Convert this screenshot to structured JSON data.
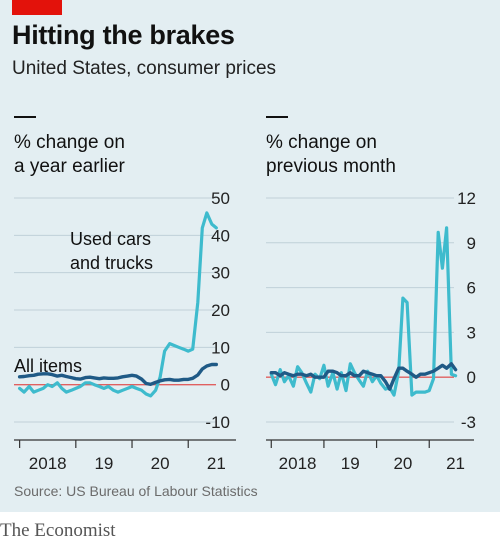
{
  "header": {
    "title": "Hitting the brakes",
    "subtitle": "United States, consumer prices"
  },
  "source": "Source: US Bureau of Labour Statistics",
  "footer": "The Economist",
  "colors": {
    "background": "#e3eef2",
    "accent_red": "#e3120b",
    "all_items": "#1f5a86",
    "used_cars": "#3ebbcd",
    "zero_line": "#e06060",
    "grid": "#c0d0d8"
  },
  "chart_data": [
    {
      "type": "line",
      "label_lines": [
        "% change on",
        "a year earlier"
      ],
      "ylim": [
        -10,
        50
      ],
      "yticks": [
        "50",
        "40",
        "30",
        "20",
        "10",
        "0",
        "-10"
      ],
      "ytick_values": [
        50,
        40,
        30,
        20,
        10,
        0,
        -10
      ],
      "xticks": [
        "2018",
        "19",
        "20",
        "21"
      ],
      "xtick_values": [
        2018,
        2019,
        2020,
        2021
      ],
      "xlim": [
        2017.9,
        2021.85
      ],
      "annotations": [
        {
          "lines": [
            "Used cars",
            "and trucks"
          ],
          "series": "used_cars"
        },
        {
          "lines": [
            "All items"
          ],
          "series": "all_items"
        }
      ],
      "series": [
        {
          "key": "used_cars",
          "color": "#3ebbcd",
          "x": [
            2018.0,
            2018.08,
            2018.17,
            2018.25,
            2018.33,
            2018.42,
            2018.5,
            2018.58,
            2018.67,
            2018.75,
            2018.83,
            2018.92,
            2019.0,
            2019.08,
            2019.17,
            2019.25,
            2019.33,
            2019.42,
            2019.5,
            2019.58,
            2019.67,
            2019.75,
            2019.83,
            2019.92,
            2020.0,
            2020.08,
            2020.17,
            2020.25,
            2020.33,
            2020.42,
            2020.5,
            2020.58,
            2020.67,
            2020.75,
            2020.83,
            2020.92,
            2021.0,
            2021.08,
            2021.17,
            2021.25,
            2021.33,
            2021.42,
            2021.5
          ],
          "values": [
            -1,
            -2,
            -0.5,
            -2,
            -1.5,
            -1,
            0,
            -0.5,
            0.5,
            -1,
            -2,
            -1.5,
            -1,
            -0.5,
            0.5,
            0.5,
            0,
            -0.5,
            -1,
            -0.5,
            -1.5,
            -2,
            -1.5,
            -1,
            -0.5,
            -1,
            -1.5,
            -2.5,
            -3,
            -1.5,
            2,
            9,
            11,
            10.5,
            10,
            9.5,
            9,
            9.5,
            22,
            42,
            46,
            43,
            42
          ]
        },
        {
          "key": "all_items",
          "color": "#1f5a86",
          "x": [
            2018.0,
            2018.08,
            2018.17,
            2018.25,
            2018.33,
            2018.42,
            2018.5,
            2018.58,
            2018.67,
            2018.75,
            2018.83,
            2018.92,
            2019.0,
            2019.08,
            2019.17,
            2019.25,
            2019.33,
            2019.42,
            2019.5,
            2019.58,
            2019.67,
            2019.75,
            2019.83,
            2019.92,
            2020.0,
            2020.08,
            2020.17,
            2020.25,
            2020.33,
            2020.42,
            2020.5,
            2020.58,
            2020.67,
            2020.75,
            2020.83,
            2020.92,
            2021.0,
            2021.08,
            2021.17,
            2021.25,
            2021.33,
            2021.42,
            2021.5
          ],
          "values": [
            2.1,
            2.2,
            2.4,
            2.5,
            2.8,
            2.9,
            2.9,
            2.7,
            2.3,
            2.5,
            2.2,
            1.9,
            1.6,
            1.5,
            1.9,
            2.0,
            1.8,
            1.6,
            1.8,
            1.7,
            1.7,
            1.8,
            2.1,
            2.3,
            2.5,
            2.3,
            1.5,
            0.3,
            0.1,
            0.6,
            1.0,
            1.3,
            1.4,
            1.2,
            1.2,
            1.4,
            1.4,
            1.7,
            2.6,
            4.2,
            5.0,
            5.4,
            5.4
          ]
        }
      ]
    },
    {
      "type": "line",
      "label_lines": [
        "% change on",
        "previous month"
      ],
      "ylim": [
        -3,
        12
      ],
      "yticks": [
        "12",
        "9",
        "6",
        "3",
        "0",
        "-3"
      ],
      "ytick_values": [
        12,
        9,
        6,
        3,
        0,
        -3
      ],
      "xticks": [
        "2018",
        "19",
        "20",
        "21"
      ],
      "xtick_values": [
        2018,
        2019,
        2020,
        2021
      ],
      "xlim": [
        2017.9,
        2021.85
      ],
      "annotations": [],
      "series": [
        {
          "key": "used_cars",
          "color": "#3ebbcd",
          "x": [
            2018.0,
            2018.08,
            2018.17,
            2018.25,
            2018.33,
            2018.42,
            2018.5,
            2018.58,
            2018.67,
            2018.75,
            2018.83,
            2018.92,
            2019.0,
            2019.08,
            2019.17,
            2019.25,
            2019.33,
            2019.42,
            2019.5,
            2019.58,
            2019.67,
            2019.75,
            2019.83,
            2019.92,
            2020.0,
            2020.08,
            2020.17,
            2020.25,
            2020.33,
            2020.42,
            2020.5,
            2020.58,
            2020.67,
            2020.75,
            2020.83,
            2020.92,
            2021.0,
            2021.08,
            2021.17,
            2021.25,
            2021.33,
            2021.42,
            2021.5
          ],
          "values": [
            0.2,
            -0.5,
            0.5,
            -0.3,
            0.1,
            -0.6,
            0.7,
            0.3,
            -0.4,
            -1.0,
            0.2,
            -0.1,
            0.8,
            -0.6,
            0.3,
            -0.8,
            0.3,
            -0.9,
            0.9,
            0.3,
            -0.2,
            -0.6,
            0.4,
            -0.3,
            0.1,
            -0.4,
            -0.8,
            -0.7,
            -1.2,
            0.4,
            5.3,
            5.0,
            -1.2,
            -1.0,
            -1.0,
            -1.0,
            -0.9,
            -0.1,
            9.7,
            7.3,
            10.0,
            0.2,
            0.1
          ]
        },
        {
          "key": "all_items",
          "color": "#1f5a86",
          "x": [
            2018.0,
            2018.08,
            2018.17,
            2018.25,
            2018.33,
            2018.42,
            2018.5,
            2018.58,
            2018.67,
            2018.75,
            2018.83,
            2018.92,
            2019.0,
            2019.08,
            2019.17,
            2019.25,
            2019.33,
            2019.42,
            2019.5,
            2019.58,
            2019.67,
            2019.75,
            2019.83,
            2019.92,
            2020.0,
            2020.08,
            2020.17,
            2020.25,
            2020.33,
            2020.42,
            2020.5,
            2020.58,
            2020.67,
            2020.75,
            2020.83,
            2020.92,
            2021.0,
            2021.08,
            2021.17,
            2021.25,
            2021.33,
            2021.42,
            2021.5
          ],
          "values": [
            0.3,
            0.3,
            0.1,
            0.3,
            0.2,
            0.1,
            0.2,
            0.2,
            0.1,
            0.2,
            0.0,
            0.0,
            0.0,
            0.4,
            0.4,
            0.3,
            0.1,
            0.1,
            0.3,
            0.1,
            0.1,
            0.4,
            0.3,
            0.2,
            0.1,
            0.1,
            -0.3,
            -0.8,
            -0.1,
            0.6,
            0.6,
            0.4,
            0.2,
            0.0,
            0.2,
            0.2,
            0.3,
            0.4,
            0.6,
            0.8,
            0.6,
            0.9,
            0.5
          ]
        }
      ]
    }
  ]
}
